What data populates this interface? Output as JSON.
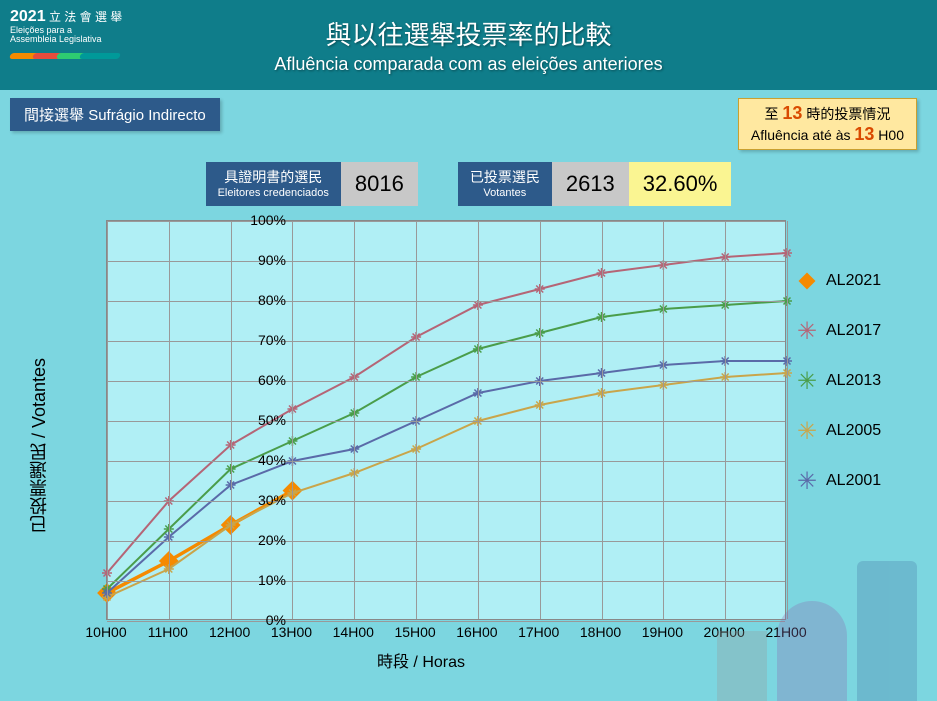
{
  "header": {
    "logo_year": "2021",
    "logo_text_zh": "立 法 會 選 舉",
    "logo_sub_pt1": "Eleições para a",
    "logo_sub_pt2": "Assembleia Legislativa",
    "title_zh": "與以往選舉投票率的比較",
    "title_pt": "Afluência comparada com as eleições anteriores"
  },
  "election_type": {
    "zh": "間接選舉",
    "pt": "Sufrágio Indirecto"
  },
  "status": {
    "zh_pre": "至 ",
    "zh_hour": "13",
    "zh_post": " 時的投票情況",
    "pt_pre": "Afluência até às ",
    "pt_hour": "13",
    "pt_post": " H00"
  },
  "stats": {
    "credenciados": {
      "label_zh": "具證明書的選民",
      "label_pt": "Eleitores credenciados",
      "value": "8016"
    },
    "votantes": {
      "label_zh": "已投票選民",
      "label_pt": "Votantes",
      "value": "2613",
      "pct": "32.60%"
    }
  },
  "chart": {
    "type": "line",
    "ylabel": "已投票選民 / Votantes",
    "xlabel": "時段 / Horas",
    "x_categories": [
      "10H00",
      "11H00",
      "12H00",
      "13H00",
      "14H00",
      "15H00",
      "16H00",
      "17H00",
      "18H00",
      "19H00",
      "20H00",
      "21H00"
    ],
    "ylim": [
      0,
      100
    ],
    "ytick_step": 10,
    "ytick_suffix": "%",
    "plot_bg": "#b0eff5",
    "page_bg": "#7cd6e0",
    "grid_color": "#999999",
    "series": [
      {
        "name": "AL2021",
        "color": "#f58a00",
        "marker": "diamond",
        "marker_size": 14,
        "line_width": 3.5,
        "values": [
          7,
          15,
          24,
          32.6
        ]
      },
      {
        "name": "AL2017",
        "color": "#b56576",
        "marker": "asterisk",
        "marker_size": 10,
        "line_width": 2,
        "values": [
          12,
          30,
          44,
          53,
          61,
          71,
          79,
          83,
          87,
          89,
          91,
          92
        ]
      },
      {
        "name": "AL2013",
        "color": "#4a9d4a",
        "marker": "asterisk",
        "marker_size": 10,
        "line_width": 2,
        "values": [
          8,
          23,
          38,
          45,
          52,
          61,
          68,
          72,
          76,
          78,
          79,
          80
        ]
      },
      {
        "name": "AL2005",
        "color": "#c9a54a",
        "marker": "asterisk",
        "marker_size": 10,
        "line_width": 2,
        "values": [
          6,
          13,
          24,
          32,
          37,
          43,
          50,
          54,
          57,
          59,
          61,
          62
        ]
      },
      {
        "name": "AL2001",
        "color": "#5a6aa8",
        "marker": "asterisk",
        "marker_size": 10,
        "line_width": 2,
        "values": [
          7,
          21,
          34,
          40,
          43,
          50,
          57,
          60,
          62,
          64,
          65,
          65
        ]
      }
    ],
    "legend_position": "right"
  },
  "colors": {
    "header_bg": "#0f7d8a",
    "box_blue": "#2d5a8a",
    "box_grey": "#c8c8c8",
    "box_yellow": "#faf592",
    "status_bg": "#ffe8a0",
    "status_border": "#c9a030",
    "status_accent": "#d94a00",
    "logo_bars": [
      "#f58a00",
      "#e74c3c",
      "#2ecc71",
      "#009999"
    ]
  }
}
